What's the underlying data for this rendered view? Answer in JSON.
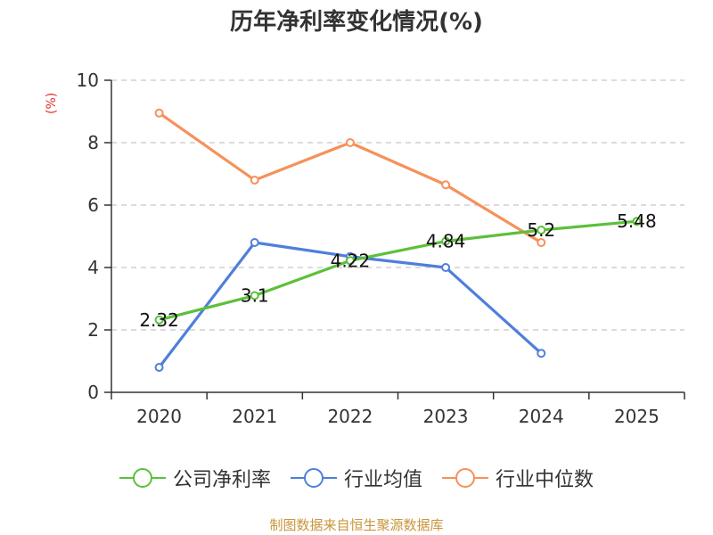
{
  "chart_data": {
    "type": "line",
    "title": "历年净利率变化情况(%)",
    "ylabel": "(%)",
    "categories": [
      "2020",
      "2021",
      "2022",
      "2023",
      "2024",
      "2025"
    ],
    "ylim": [
      0,
      10
    ],
    "yticks": [
      "0",
      "2",
      "4",
      "6",
      "8",
      "10"
    ],
    "grid": true,
    "legend_position": "bottom",
    "series": [
      {
        "name": "公司净利率",
        "color": "#5cc03a",
        "values": [
          2.32,
          3.1,
          4.22,
          4.84,
          5.2,
          5.48
        ],
        "labels": [
          "2.32",
          "3.1",
          "4.22",
          "4.84",
          "5.2",
          "5.48"
        ]
      },
      {
        "name": "行业均值",
        "color": "#4f7fdc",
        "values": [
          0.8,
          4.8,
          4.35,
          4.0,
          1.25,
          null
        ]
      },
      {
        "name": "行业中位数",
        "color": "#f5915a",
        "values": [
          8.95,
          6.8,
          8.0,
          6.65,
          4.8,
          null
        ]
      }
    ]
  },
  "source": "制图数据来自恒生聚源数据库"
}
